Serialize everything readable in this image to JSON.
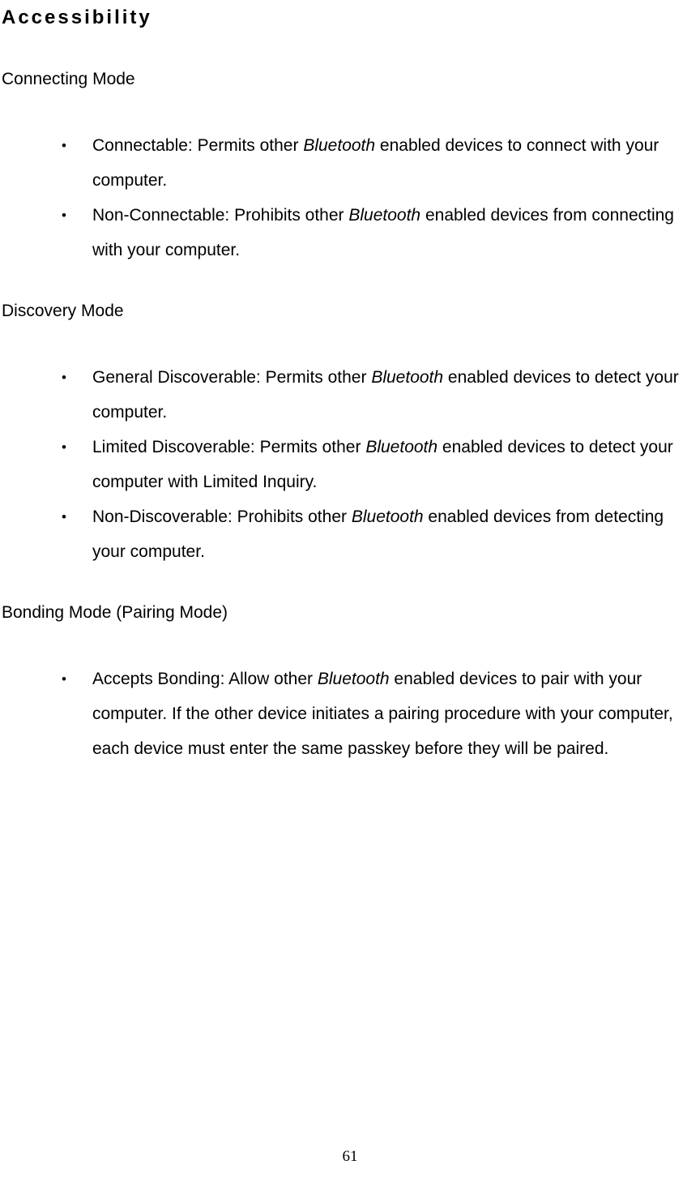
{
  "heading": "Accessibility",
  "sections": [
    {
      "title": "Connecting Mode",
      "items": [
        {
          "label": "Connectable:",
          "spacing": "   ",
          "pre": "Permits other ",
          "italic": "Bluetooth",
          "post": " enabled devices to connect with your computer."
        },
        {
          "label": "Non-Connectable:",
          "spacing": " ",
          "pre": "Prohibits other ",
          "italic": "Bluetooth",
          "post": " enabled devices from connecting with your computer."
        }
      ]
    },
    {
      "title": "Discovery Mode",
      "items": [
        {
          "label": "General Discoverable:",
          "spacing": " ",
          "pre": "Permits other ",
          "italic": "Bluetooth",
          "post": " enabled devices to detect your computer."
        },
        {
          "label": "Limited Discoverable:",
          "spacing": " ",
          "pre": "Permits other ",
          "italic": "Bluetooth",
          "post": " enabled devices to detect your computer with Limited Inquiry."
        },
        {
          "label": "Non-Discoverable:",
          "spacing": " ",
          "pre": "Prohibits other ",
          "italic": "Bluetooth",
          "post": " enabled devices from detecting your computer."
        }
      ]
    },
    {
      "title": "Bonding Mode (Pairing Mode)",
      "items": [
        {
          "label": " Accepts Bonding:",
          "spacing": " ",
          "pre": "Allow other ",
          "italic": "Bluetooth",
          "post": " enabled devices to pair with your computer. If the other device initiates a pairing procedure with your computer, each device must enter the same passkey before they will be paired."
        }
      ]
    }
  ],
  "pageNumber": "61",
  "colors": {
    "background": "#ffffff",
    "text": "#000000"
  },
  "typography": {
    "heading_fontsize": 24,
    "heading_letterspacing": 3,
    "body_fontsize": 21,
    "line_height": 43,
    "pagenum_fontsize": 19
  }
}
